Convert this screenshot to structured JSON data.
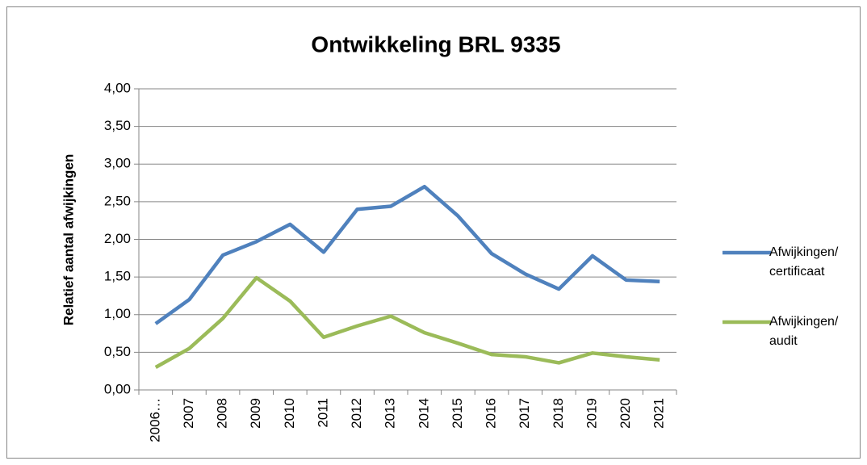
{
  "chart_data": {
    "type": "line",
    "title": "Ontwikkeling BRL 9335",
    "y_label": "Relatief aantal afwijkingen",
    "categories": [
      "2006…",
      "2007",
      "2008",
      "2009",
      "2010",
      "2011",
      "2012",
      "2013",
      "2014",
      "2015",
      "2016",
      "2017",
      "2018",
      "2019",
      "2020",
      "2021"
    ],
    "series": [
      {
        "name": "Afwijkingen/ certificaat",
        "color": "#4f81bd",
        "values": [
          0.88,
          1.2,
          1.79,
          1.97,
          2.2,
          1.83,
          2.4,
          2.44,
          2.7,
          2.31,
          1.81,
          1.54,
          1.34,
          1.78,
          1.46,
          1.44
        ]
      },
      {
        "name": "Afwijkingen/ audit",
        "color": "#9bbb59",
        "values": [
          0.3,
          0.55,
          0.95,
          1.49,
          1.18,
          0.7,
          0.85,
          0.98,
          0.76,
          0.62,
          0.47,
          0.44,
          0.36,
          0.49,
          0.44,
          0.4
        ]
      }
    ],
    "ylim": [
      0,
      4
    ],
    "yticks": [
      {
        "value": 0,
        "label": "0,00"
      },
      {
        "value": 0.5,
        "label": "0,50"
      },
      {
        "value": 1,
        "label": "1,00"
      },
      {
        "value": 1.5,
        "label": "1,50"
      },
      {
        "value": 2,
        "label": "2,00"
      },
      {
        "value": 2.5,
        "label": "2,50"
      },
      {
        "value": 3,
        "label": "3,00"
      },
      {
        "value": 3.5,
        "label": "3,50"
      },
      {
        "value": 4,
        "label": "4,00"
      }
    ],
    "grid": true,
    "legend": "right"
  }
}
